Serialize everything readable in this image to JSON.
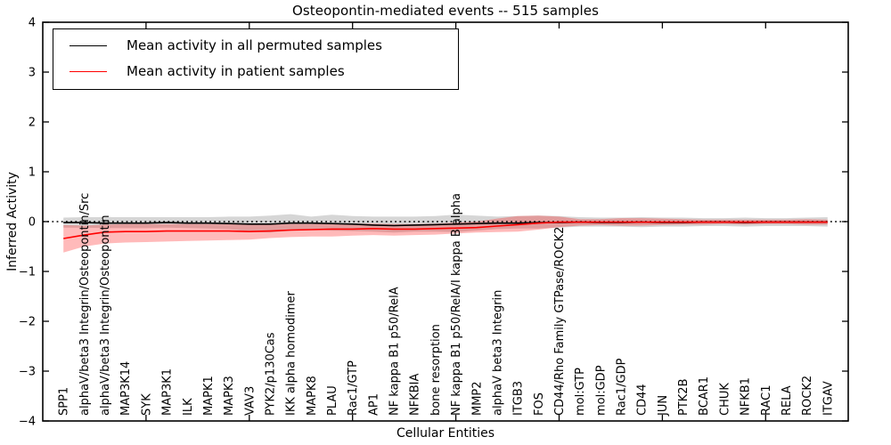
{
  "figure": {
    "title": "Osteopontin-mediated events -- 515 samples",
    "xlabel": "Cellular Entities",
    "ylabel": "Inferred Activity"
  },
  "legend": {
    "position": "upper-left",
    "entries": [
      {
        "label": "Mean activity in all permuted samples",
        "color": "#000000"
      },
      {
        "label": "Mean activity in patient samples",
        "color": "#ff0000"
      }
    ]
  },
  "chart_data": {
    "type": "line",
    "title": "Osteopontin-mediated events -- 515 samples",
    "xlabel": "Cellular Entities",
    "ylabel": "Inferred Activity",
    "ylim": [
      -4,
      4
    ],
    "grid": false,
    "zero_reference_line": "dotted",
    "ytick_labels": [
      "4",
      "3",
      "2",
      "1",
      "0",
      "−1",
      "−2",
      "−3",
      "−4"
    ],
    "ytick_values": [
      4,
      3,
      2,
      1,
      0,
      -1,
      -2,
      -3,
      -4
    ],
    "xtick_positions": [
      5,
      10,
      15,
      20,
      25,
      30,
      35
    ],
    "categories": [
      "SPP1",
      "alphaV/beta3 Integrin/Osteopontin/Src",
      "alphaV/beta3 Integrin/Osteopontin",
      "MAP3K14",
      "SYK",
      "MAP3K1",
      "ILK",
      "MAPK1",
      "MAPK3",
      "VAV3",
      "PYK2/p130Cas",
      "IKK alpha homodimer",
      "MAPK8",
      "PLAU",
      "Rac1/GTP",
      "AP1",
      "NF kappa B1 p50/RelA",
      "NFKBIA",
      "bone resorption",
      "NF kappa B1 p50/RelA/I kappa B alpha",
      "MMP2",
      "alphaV beta3 Integrin",
      "ITGB3",
      "FOS",
      "CD44/Rho Family GTPase/ROCK2",
      "mol:GTP",
      "mol:GDP",
      "Rac1/GDP",
      "CD44",
      "JUN",
      "PTK2B",
      "BCAR1",
      "CHUK",
      "NFKB1",
      "RAC1",
      "RELA",
      "ROCK2",
      "ITGAV"
    ],
    "series": [
      {
        "name": "Mean activity in all permuted samples",
        "color": "#000000",
        "band_color": "rgba(128,128,128,0.32)",
        "values": [
          -0.02,
          -0.02,
          -0.03,
          -0.03,
          -0.03,
          -0.02,
          -0.03,
          -0.03,
          -0.04,
          -0.05,
          -0.05,
          -0.03,
          -0.03,
          -0.04,
          -0.05,
          -0.07,
          -0.08,
          -0.07,
          -0.06,
          -0.05,
          -0.04,
          -0.03,
          -0.03,
          -0.02,
          -0.02,
          -0.01,
          -0.02,
          -0.02,
          -0.01,
          -0.02,
          -0.02,
          -0.01,
          -0.01,
          -0.02,
          -0.01,
          -0.01,
          -0.01,
          -0.01
        ],
        "band_upper": [
          0.08,
          0.09,
          0.09,
          0.09,
          0.09,
          0.09,
          0.09,
          0.09,
          0.1,
          0.1,
          0.12,
          0.15,
          0.1,
          0.14,
          0.11,
          0.1,
          0.1,
          0.1,
          0.11,
          0.14,
          0.12,
          0.1,
          0.11,
          0.12,
          0.11,
          0.09,
          0.08,
          0.08,
          0.09,
          0.08,
          0.08,
          0.07,
          0.07,
          0.08,
          0.07,
          0.07,
          0.08,
          0.09
        ],
        "band_lower": [
          -0.12,
          -0.12,
          -0.13,
          -0.13,
          -0.13,
          -0.12,
          -0.13,
          -0.14,
          -0.15,
          -0.2,
          -0.22,
          -0.18,
          -0.15,
          -0.18,
          -0.19,
          -0.2,
          -0.22,
          -0.2,
          -0.2,
          -0.21,
          -0.18,
          -0.15,
          -0.14,
          -0.14,
          -0.12,
          -0.1,
          -0.1,
          -0.1,
          -0.11,
          -0.1,
          -0.1,
          -0.09,
          -0.09,
          -0.1,
          -0.09,
          -0.09,
          -0.09,
          -0.1
        ]
      },
      {
        "name": "Mean activity in patient samples",
        "color": "#ff0000",
        "band_color": "rgba(255,0,0,0.27)",
        "values": [
          -0.34,
          -0.27,
          -0.21,
          -0.2,
          -0.2,
          -0.19,
          -0.19,
          -0.19,
          -0.19,
          -0.2,
          -0.19,
          -0.17,
          -0.16,
          -0.15,
          -0.15,
          -0.14,
          -0.15,
          -0.15,
          -0.14,
          -0.13,
          -0.12,
          -0.09,
          -0.06,
          -0.03,
          -0.01,
          -0.01,
          -0.01,
          -0.01,
          -0.01,
          -0.01,
          -0.01,
          -0.01,
          -0.01,
          -0.01,
          -0.01,
          -0.01,
          -0.01,
          -0.01
        ],
        "band_upper": [
          -0.07,
          -0.08,
          -0.06,
          -0.05,
          -0.05,
          -0.05,
          -0.05,
          -0.05,
          -0.05,
          -0.06,
          -0.05,
          -0.05,
          -0.05,
          -0.04,
          -0.04,
          -0.04,
          -0.05,
          -0.05,
          -0.04,
          -0.02,
          0.0,
          0.06,
          0.11,
          0.12,
          0.1,
          0.05,
          0.05,
          0.07,
          0.07,
          0.06,
          0.05,
          0.04,
          0.04,
          0.04,
          0.04,
          0.04,
          0.05,
          0.04
        ],
        "band_lower": [
          -0.62,
          -0.5,
          -0.44,
          -0.42,
          -0.41,
          -0.4,
          -0.39,
          -0.38,
          -0.37,
          -0.36,
          -0.33,
          -0.31,
          -0.3,
          -0.3,
          -0.28,
          -0.27,
          -0.28,
          -0.27,
          -0.26,
          -0.24,
          -0.22,
          -0.21,
          -0.2,
          -0.16,
          -0.11,
          -0.08,
          -0.07,
          -0.08,
          -0.08,
          -0.07,
          -0.06,
          -0.06,
          -0.05,
          -0.06,
          -0.05,
          -0.05,
          -0.06,
          -0.06
        ]
      }
    ]
  }
}
